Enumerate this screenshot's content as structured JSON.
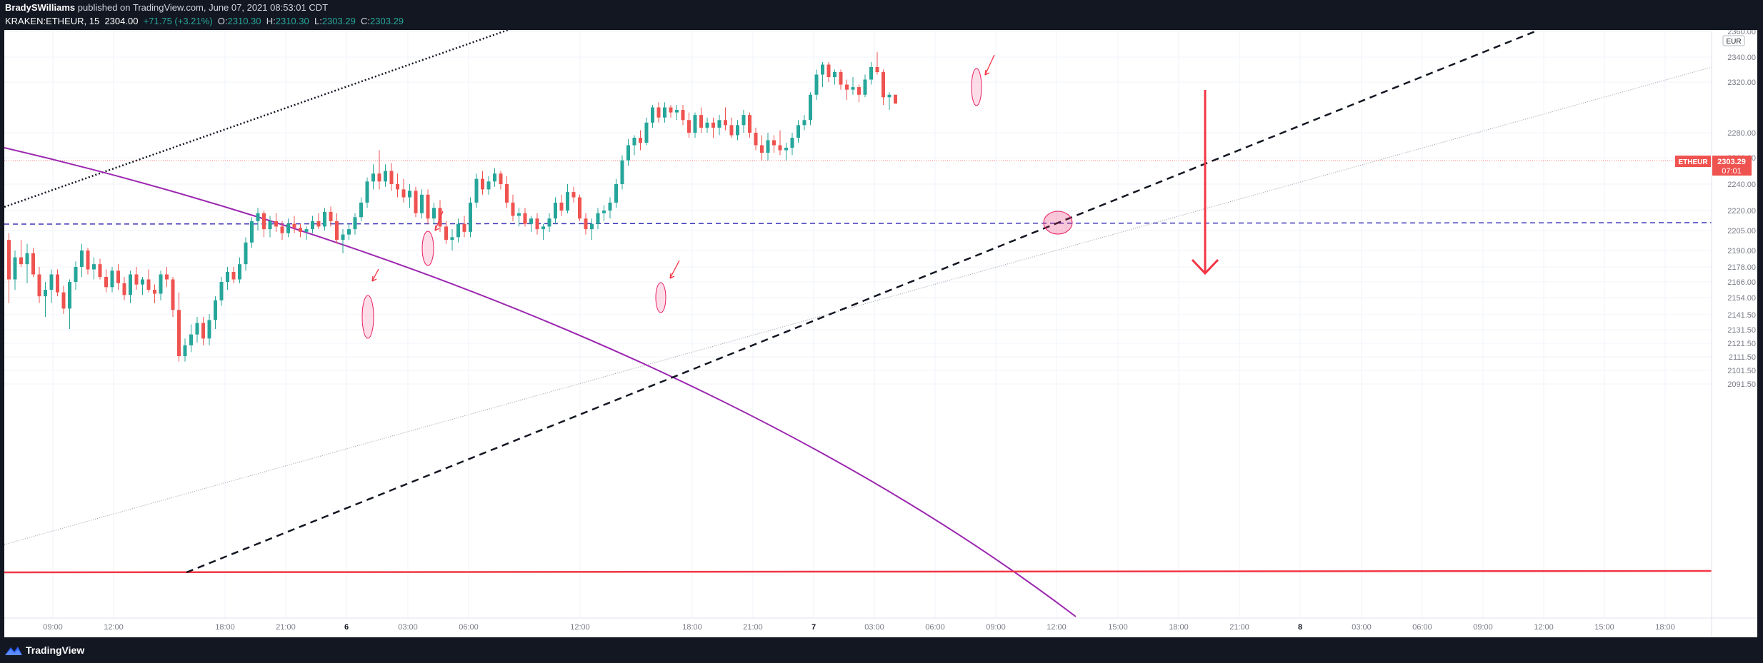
{
  "header": {
    "author": "BradySWilliams",
    "published_text": "published on TradingView.com, June 07, 2021 08:53:01 CDT",
    "symbol": "KRAKEN:ETHEUR, 15",
    "last": "2304.00",
    "change": "+71.75 (+3.21%)",
    "o_label": "O:",
    "o": "2310.30",
    "h_label": "H:",
    "h": "2310.30",
    "l_label": "L:",
    "l": "2303.29",
    "c_label": "C:",
    "c": "2303.29"
  },
  "footer": {
    "brand": "TradingView",
    "logo_icon": "tradingview-logo-icon"
  },
  "colors": {
    "up": "#26a69a",
    "down": "#ef5350",
    "bg": "#ffffff",
    "frame": "#131722",
    "purple": "#9c27b0",
    "hline": "#2962ff",
    "red": "#f23645"
  },
  "chart_data": {
    "type": "candlestick",
    "symbol": "ETHEUR",
    "currency": "EUR",
    "interval": "15",
    "price_label": "2303.29",
    "countdown": "07:01",
    "y_ticks": [
      "2360.00",
      "2340.00",
      "2320.00",
      "2280.00",
      "2260.00",
      "2240.00",
      "2220.00",
      "2205.00",
      "2190.00",
      "2178.00",
      "2166.00",
      "2154.00",
      "2141.50",
      "2131.50",
      "2121.50",
      "2111.50",
      "2101.50",
      "2091.50"
    ],
    "x_ticks": [
      "09:00",
      "12:00",
      "18:00",
      "21:00",
      "6",
      "03:00",
      "06:00",
      "12:00",
      "18:00",
      "21:00",
      "7",
      "03:00",
      "06:00",
      "09:00",
      "12:00",
      "15:00",
      "18:00",
      "21:00",
      "8",
      "03:00",
      "06:00",
      "09:00",
      "12:00",
      "15:00",
      "18:00"
    ],
    "y_scale": "log",
    "grid": true,
    "candles": [
      {
        "o": 2198,
        "h": 2203,
        "l": 2150,
        "c": 2168
      },
      {
        "o": 2168,
        "h": 2190,
        "l": 2160,
        "c": 2185
      },
      {
        "o": 2185,
        "h": 2198,
        "l": 2178,
        "c": 2180
      },
      {
        "o": 2180,
        "h": 2195,
        "l": 2165,
        "c": 2188
      },
      {
        "o": 2188,
        "h": 2192,
        "l": 2170,
        "c": 2172
      },
      {
        "o": 2172,
        "h": 2178,
        "l": 2150,
        "c": 2155
      },
      {
        "o": 2155,
        "h": 2166,
        "l": 2140,
        "c": 2160
      },
      {
        "o": 2160,
        "h": 2176,
        "l": 2150,
        "c": 2172
      },
      {
        "o": 2172,
        "h": 2176,
        "l": 2155,
        "c": 2158
      },
      {
        "o": 2158,
        "h": 2163,
        "l": 2142,
        "c": 2146
      },
      {
        "o": 2146,
        "h": 2168,
        "l": 2132,
        "c": 2166
      },
      {
        "o": 2166,
        "h": 2182,
        "l": 2160,
        "c": 2178
      },
      {
        "o": 2178,
        "h": 2195,
        "l": 2170,
        "c": 2190
      },
      {
        "o": 2190,
        "h": 2192,
        "l": 2172,
        "c": 2176
      },
      {
        "o": 2176,
        "h": 2185,
        "l": 2168,
        "c": 2180
      },
      {
        "o": 2180,
        "h": 2184,
        "l": 2168,
        "c": 2170
      },
      {
        "o": 2170,
        "h": 2176,
        "l": 2158,
        "c": 2162
      },
      {
        "o": 2162,
        "h": 2178,
        "l": 2158,
        "c": 2175
      },
      {
        "o": 2175,
        "h": 2180,
        "l": 2160,
        "c": 2165
      },
      {
        "o": 2165,
        "h": 2170,
        "l": 2152,
        "c": 2156
      },
      {
        "o": 2156,
        "h": 2175,
        "l": 2150,
        "c": 2172
      },
      {
        "o": 2172,
        "h": 2178,
        "l": 2160,
        "c": 2164
      },
      {
        "o": 2164,
        "h": 2170,
        "l": 2156,
        "c": 2168
      },
      {
        "o": 2168,
        "h": 2176,
        "l": 2158,
        "c": 2160
      },
      {
        "o": 2160,
        "h": 2164,
        "l": 2150,
        "c": 2157
      },
      {
        "o": 2157,
        "h": 2175,
        "l": 2152,
        "c": 2172
      },
      {
        "o": 2172,
        "h": 2178,
        "l": 2162,
        "c": 2168
      },
      {
        "o": 2168,
        "h": 2170,
        "l": 2140,
        "c": 2145
      },
      {
        "o": 2145,
        "h": 2158,
        "l": 2108,
        "c": 2112
      },
      {
        "o": 2112,
        "h": 2125,
        "l": 2108,
        "c": 2120
      },
      {
        "o": 2120,
        "h": 2135,
        "l": 2115,
        "c": 2128
      },
      {
        "o": 2128,
        "h": 2140,
        "l": 2122,
        "c": 2136
      },
      {
        "o": 2136,
        "h": 2140,
        "l": 2120,
        "c": 2125
      },
      {
        "o": 2125,
        "h": 2142,
        "l": 2120,
        "c": 2138
      },
      {
        "o": 2138,
        "h": 2155,
        "l": 2132,
        "c": 2152
      },
      {
        "o": 2152,
        "h": 2170,
        "l": 2148,
        "c": 2166
      },
      {
        "o": 2166,
        "h": 2178,
        "l": 2160,
        "c": 2174
      },
      {
        "o": 2174,
        "h": 2178,
        "l": 2165,
        "c": 2168
      },
      {
        "o": 2168,
        "h": 2185,
        "l": 2165,
        "c": 2180
      },
      {
        "o": 2180,
        "h": 2200,
        "l": 2175,
        "c": 2196
      },
      {
        "o": 2196,
        "h": 2215,
        "l": 2192,
        "c": 2212
      },
      {
        "o": 2212,
        "h": 2222,
        "l": 2205,
        "c": 2218
      },
      {
        "o": 2218,
        "h": 2220,
        "l": 2200,
        "c": 2206
      },
      {
        "o": 2206,
        "h": 2216,
        "l": 2200,
        "c": 2212
      },
      {
        "o": 2212,
        "h": 2218,
        "l": 2204,
        "c": 2208
      },
      {
        "o": 2208,
        "h": 2212,
        "l": 2198,
        "c": 2203
      },
      {
        "o": 2203,
        "h": 2214,
        "l": 2200,
        "c": 2210
      },
      {
        "o": 2210,
        "h": 2216,
        "l": 2203,
        "c": 2207
      },
      {
        "o": 2207,
        "h": 2210,
        "l": 2200,
        "c": 2204
      },
      {
        "o": 2204,
        "h": 2208,
        "l": 2198,
        "c": 2206
      },
      {
        "o": 2206,
        "h": 2216,
        "l": 2203,
        "c": 2212
      },
      {
        "o": 2212,
        "h": 2218,
        "l": 2206,
        "c": 2208
      },
      {
        "o": 2208,
        "h": 2222,
        "l": 2205,
        "c": 2219
      },
      {
        "o": 2219,
        "h": 2223,
        "l": 2208,
        "c": 2212
      },
      {
        "o": 2212,
        "h": 2218,
        "l": 2195,
        "c": 2198
      },
      {
        "o": 2198,
        "h": 2206,
        "l": 2188,
        "c": 2202
      },
      {
        "o": 2202,
        "h": 2210,
        "l": 2198,
        "c": 2206
      },
      {
        "o": 2206,
        "h": 2218,
        "l": 2202,
        "c": 2215
      },
      {
        "o": 2215,
        "h": 2230,
        "l": 2212,
        "c": 2226
      },
      {
        "o": 2226,
        "h": 2245,
        "l": 2222,
        "c": 2242
      },
      {
        "o": 2242,
        "h": 2255,
        "l": 2236,
        "c": 2248
      },
      {
        "o": 2248,
        "h": 2266,
        "l": 2236,
        "c": 2242
      },
      {
        "o": 2242,
        "h": 2255,
        "l": 2238,
        "c": 2250
      },
      {
        "o": 2250,
        "h": 2256,
        "l": 2235,
        "c": 2240
      },
      {
        "o": 2240,
        "h": 2248,
        "l": 2230,
        "c": 2236
      },
      {
        "o": 2236,
        "h": 2244,
        "l": 2226,
        "c": 2230
      },
      {
        "o": 2230,
        "h": 2240,
        "l": 2222,
        "c": 2235
      },
      {
        "o": 2235,
        "h": 2238,
        "l": 2215,
        "c": 2218
      },
      {
        "o": 2218,
        "h": 2236,
        "l": 2214,
        "c": 2232
      },
      {
        "o": 2232,
        "h": 2236,
        "l": 2210,
        "c": 2214
      },
      {
        "o": 2214,
        "h": 2226,
        "l": 2210,
        "c": 2222
      },
      {
        "o": 2222,
        "h": 2228,
        "l": 2204,
        "c": 2208
      },
      {
        "o": 2208,
        "h": 2212,
        "l": 2195,
        "c": 2198
      },
      {
        "o": 2198,
        "h": 2206,
        "l": 2190,
        "c": 2200
      },
      {
        "o": 2200,
        "h": 2214,
        "l": 2196,
        "c": 2210
      },
      {
        "o": 2210,
        "h": 2216,
        "l": 2200,
        "c": 2204
      },
      {
        "o": 2204,
        "h": 2230,
        "l": 2200,
        "c": 2226
      },
      {
        "o": 2226,
        "h": 2248,
        "l": 2222,
        "c": 2244
      },
      {
        "o": 2244,
        "h": 2250,
        "l": 2232,
        "c": 2236
      },
      {
        "o": 2236,
        "h": 2246,
        "l": 2232,
        "c": 2242
      },
      {
        "o": 2242,
        "h": 2252,
        "l": 2238,
        "c": 2248
      },
      {
        "o": 2248,
        "h": 2250,
        "l": 2236,
        "c": 2240
      },
      {
        "o": 2240,
        "h": 2246,
        "l": 2222,
        "c": 2226
      },
      {
        "o": 2226,
        "h": 2232,
        "l": 2212,
        "c": 2216
      },
      {
        "o": 2216,
        "h": 2222,
        "l": 2208,
        "c": 2218
      },
      {
        "o": 2218,
        "h": 2222,
        "l": 2208,
        "c": 2210
      },
      {
        "o": 2210,
        "h": 2216,
        "l": 2204,
        "c": 2214
      },
      {
        "o": 2214,
        "h": 2218,
        "l": 2202,
        "c": 2206
      },
      {
        "o": 2206,
        "h": 2210,
        "l": 2198,
        "c": 2208
      },
      {
        "o": 2208,
        "h": 2218,
        "l": 2204,
        "c": 2214
      },
      {
        "o": 2214,
        "h": 2230,
        "l": 2210,
        "c": 2226
      },
      {
        "o": 2226,
        "h": 2232,
        "l": 2216,
        "c": 2220
      },
      {
        "o": 2220,
        "h": 2240,
        "l": 2218,
        "c": 2234
      },
      {
        "o": 2234,
        "h": 2238,
        "l": 2226,
        "c": 2230
      },
      {
        "o": 2230,
        "h": 2232,
        "l": 2212,
        "c": 2214
      },
      {
        "o": 2214,
        "h": 2218,
        "l": 2202,
        "c": 2206
      },
      {
        "o": 2206,
        "h": 2214,
        "l": 2198,
        "c": 2210
      },
      {
        "o": 2210,
        "h": 2222,
        "l": 2206,
        "c": 2218
      },
      {
        "o": 2218,
        "h": 2224,
        "l": 2212,
        "c": 2220
      },
      {
        "o": 2220,
        "h": 2230,
        "l": 2214,
        "c": 2226
      },
      {
        "o": 2226,
        "h": 2244,
        "l": 2222,
        "c": 2240
      },
      {
        "o": 2240,
        "h": 2262,
        "l": 2236,
        "c": 2258
      },
      {
        "o": 2258,
        "h": 2275,
        "l": 2254,
        "c": 2270
      },
      {
        "o": 2270,
        "h": 2278,
        "l": 2262,
        "c": 2276
      },
      {
        "o": 2276,
        "h": 2282,
        "l": 2266,
        "c": 2272
      },
      {
        "o": 2272,
        "h": 2292,
        "l": 2270,
        "c": 2288
      },
      {
        "o": 2288,
        "h": 2302,
        "l": 2284,
        "c": 2300
      },
      {
        "o": 2300,
        "h": 2304,
        "l": 2288,
        "c": 2292
      },
      {
        "o": 2292,
        "h": 2304,
        "l": 2288,
        "c": 2300
      },
      {
        "o": 2300,
        "h": 2302,
        "l": 2292,
        "c": 2296
      },
      {
        "o": 2296,
        "h": 2302,
        "l": 2290,
        "c": 2298
      },
      {
        "o": 2298,
        "h": 2302,
        "l": 2286,
        "c": 2290
      },
      {
        "o": 2290,
        "h": 2296,
        "l": 2276,
        "c": 2280
      },
      {
        "o": 2280,
        "h": 2296,
        "l": 2276,
        "c": 2294
      },
      {
        "o": 2294,
        "h": 2300,
        "l": 2280,
        "c": 2284
      },
      {
        "o": 2284,
        "h": 2292,
        "l": 2280,
        "c": 2288
      },
      {
        "o": 2288,
        "h": 2292,
        "l": 2276,
        "c": 2284
      },
      {
        "o": 2284,
        "h": 2294,
        "l": 2278,
        "c": 2290
      },
      {
        "o": 2290,
        "h": 2300,
        "l": 2282,
        "c": 2286
      },
      {
        "o": 2286,
        "h": 2292,
        "l": 2276,
        "c": 2278
      },
      {
        "o": 2278,
        "h": 2290,
        "l": 2274,
        "c": 2286
      },
      {
        "o": 2286,
        "h": 2298,
        "l": 2280,
        "c": 2294
      },
      {
        "o": 2294,
        "h": 2296,
        "l": 2276,
        "c": 2280
      },
      {
        "o": 2280,
        "h": 2284,
        "l": 2266,
        "c": 2270
      },
      {
        "o": 2270,
        "h": 2278,
        "l": 2258,
        "c": 2264
      },
      {
        "o": 2264,
        "h": 2280,
        "l": 2258,
        "c": 2274
      },
      {
        "o": 2274,
        "h": 2278,
        "l": 2264,
        "c": 2270
      },
      {
        "o": 2270,
        "h": 2282,
        "l": 2262,
        "c": 2266
      },
      {
        "o": 2266,
        "h": 2272,
        "l": 2258,
        "c": 2268
      },
      {
        "o": 2268,
        "h": 2280,
        "l": 2262,
        "c": 2276
      },
      {
        "o": 2276,
        "h": 2290,
        "l": 2272,
        "c": 2286
      },
      {
        "o": 2286,
        "h": 2294,
        "l": 2282,
        "c": 2290
      },
      {
        "o": 2290,
        "h": 2312,
        "l": 2286,
        "c": 2310
      },
      {
        "o": 2310,
        "h": 2330,
        "l": 2306,
        "c": 2326
      },
      {
        "o": 2326,
        "h": 2336,
        "l": 2316,
        "c": 2334
      },
      {
        "o": 2334,
        "h": 2336,
        "l": 2320,
        "c": 2324
      },
      {
        "o": 2324,
        "h": 2330,
        "l": 2318,
        "c": 2328
      },
      {
        "o": 2328,
        "h": 2330,
        "l": 2314,
        "c": 2318
      },
      {
        "o": 2318,
        "h": 2322,
        "l": 2306,
        "c": 2314
      },
      {
        "o": 2314,
        "h": 2324,
        "l": 2310,
        "c": 2316
      },
      {
        "o": 2316,
        "h": 2318,
        "l": 2304,
        "c": 2310
      },
      {
        "o": 2310,
        "h": 2326,
        "l": 2308,
        "c": 2322
      },
      {
        "o": 2322,
        "h": 2336,
        "l": 2318,
        "c": 2332
      },
      {
        "o": 2332,
        "h": 2344,
        "l": 2326,
        "c": 2328
      },
      {
        "o": 2328,
        "h": 2330,
        "l": 2302,
        "c": 2308
      },
      {
        "o": 2308,
        "h": 2312,
        "l": 2298,
        "c": 2310
      },
      {
        "o": 2310,
        "h": 2310,
        "l": 2303,
        "c": 2303
      }
    ]
  }
}
